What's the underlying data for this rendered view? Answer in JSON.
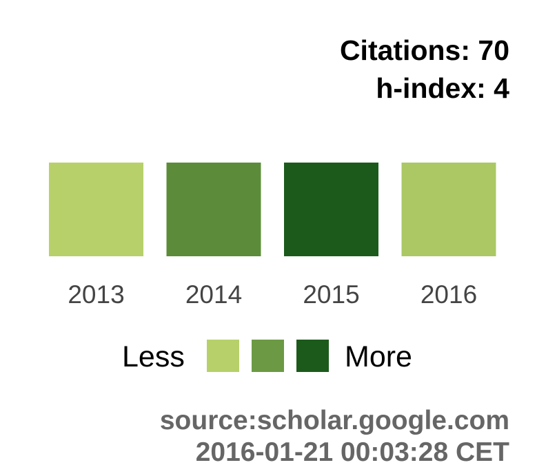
{
  "stats": {
    "citations": "Citations: 70",
    "h_index": "h-index: 4"
  },
  "legend": {
    "less_label": "Less",
    "more_label": "More",
    "colors": [
      "#b7d06a",
      "#6c9a44",
      "#1c5a1c"
    ]
  },
  "footer": {
    "source": "source:scholar.google.com",
    "timestamp": "2016-01-21 00:03:28 CET"
  },
  "chart_data": {
    "type": "heatmap",
    "categories": [
      "2013",
      "2014",
      "2015",
      "2016"
    ],
    "colors": [
      "#b7d06a",
      "#5c8c3a",
      "#1c5a1c",
      "#abc864"
    ],
    "title": "",
    "xlabel": "",
    "ylabel": ""
  }
}
